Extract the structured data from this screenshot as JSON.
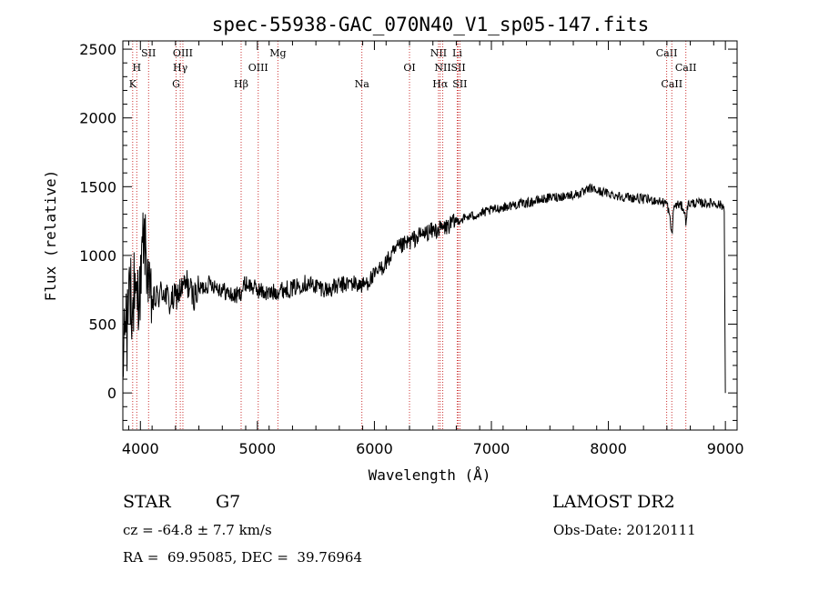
{
  "chart_data": {
    "type": "line",
    "title": "spec-55938-GAC_070N40_V1_sp05-147.fits",
    "xlabel": "Wavelength (Å)",
    "ylabel": "Flux (relative)",
    "xlim": [
      3850,
      9100
    ],
    "ylim": [
      -270,
      2560
    ],
    "x_ticks": [
      {
        "value": 4000,
        "label": "4000"
      },
      {
        "value": 5000,
        "label": "5000"
      },
      {
        "value": 6000,
        "label": "6000"
      },
      {
        "value": 7000,
        "label": "7000"
      },
      {
        "value": 8000,
        "label": "8000"
      },
      {
        "value": 9000,
        "label": "9000"
      }
    ],
    "y_ticks": [
      {
        "value": 0,
        "label": "0"
      },
      {
        "value": 500,
        "label": "500"
      },
      {
        "value": 1000,
        "label": "1000"
      },
      {
        "value": 1500,
        "label": "1500"
      },
      {
        "value": 2000,
        "label": "2000"
      },
      {
        "value": 2500,
        "label": "2500"
      }
    ],
    "grid": false,
    "line_color": "#000000",
    "marker_color": "#cc3333",
    "spectral_lines": [
      {
        "label": "K",
        "wavelength": 3934,
        "row": 3
      },
      {
        "label": "H",
        "wavelength": 3969,
        "row": 2
      },
      {
        "label": "SII",
        "wavelength": 4070,
        "row": 1
      },
      {
        "label": "G",
        "wavelength": 4305,
        "row": 3
      },
      {
        "label": "Hγ",
        "wavelength": 4341,
        "row": 2
      },
      {
        "label": "OIII",
        "wavelength": 4363,
        "row": 1
      },
      {
        "label": "Hβ",
        "wavelength": 4861,
        "row": 3
      },
      {
        "label": "OIII",
        "wavelength": 5007,
        "row": 2
      },
      {
        "label": "Mg",
        "wavelength": 5175,
        "row": 1
      },
      {
        "label": "Na",
        "wavelength": 5893,
        "row": 3
      },
      {
        "label": "OI",
        "wavelength": 6300,
        "row": 2
      },
      {
        "label": "NII",
        "wavelength": 6548,
        "row": 1
      },
      {
        "label": "Hα",
        "wavelength": 6563,
        "row": 3
      },
      {
        "label": "NII",
        "wavelength": 6584,
        "row": 2
      },
      {
        "label": "Li",
        "wavelength": 6708,
        "row": 1
      },
      {
        "label": "SII",
        "wavelength": 6717,
        "row": 2
      },
      {
        "label": "SII",
        "wavelength": 6731,
        "row": 3
      },
      {
        "label": "CaII",
        "wavelength": 8498,
        "row": 1
      },
      {
        "label": "CaII",
        "wavelength": 8542,
        "row": 3
      },
      {
        "label": "CaII",
        "wavelength": 8662,
        "row": 2
      }
    ],
    "series": [
      {
        "x": [
          3850,
          3875,
          3900,
          3925,
          3950,
          3975,
          4000,
          4025,
          4050,
          4075,
          4100,
          4150,
          4200,
          4250,
          4300,
          4350,
          4400,
          4450,
          4500,
          4600,
          4700,
          4800,
          4850,
          4900,
          5000,
          5100,
          5200,
          5300,
          5400,
          5500,
          5600,
          5700,
          5800,
          5900,
          6000,
          6100,
          6200,
          6300,
          6400,
          6500,
          6600,
          6700,
          6800,
          6900,
          7000,
          7100,
          7200,
          7300,
          7400,
          7500,
          7600,
          7700,
          7800,
          7850,
          7900,
          8000,
          8100,
          8200,
          8300,
          8400,
          8450,
          8500,
          8520,
          8542,
          8560,
          8600,
          8640,
          8662,
          8680,
          8700,
          8800,
          8900,
          8950,
          8990,
          9000
        ],
        "y": [
          100,
          650,
          700,
          600,
          650,
          700,
          750,
          1150,
          1000,
          700,
          650,
          700,
          750,
          650,
          700,
          750,
          800,
          700,
          750,
          800,
          750,
          700,
          720,
          800,
          750,
          720,
          750,
          760,
          800,
          780,
          750,
          780,
          800,
          780,
          850,
          950,
          1050,
          1100,
          1150,
          1180,
          1200,
          1250,
          1280,
          1300,
          1330,
          1350,
          1370,
          1380,
          1400,
          1420,
          1430,
          1440,
          1460,
          1490,
          1470,
          1450,
          1430,
          1420,
          1410,
          1400,
          1390,
          1380,
          1300,
          1150,
          1360,
          1370,
          1350,
          1250,
          1370,
          1380,
          1380,
          1380,
          1370,
          1350,
          0
        ]
      }
    ]
  },
  "info": {
    "object_type": "STAR",
    "subclass": "G7",
    "survey": "LAMOST DR2",
    "redshift": "cz = -64.8 ± 7.7 km/s",
    "obs_date": "Obs-Date: 20120111",
    "coords": "RA =  69.95085, DEC =  39.76964"
  }
}
